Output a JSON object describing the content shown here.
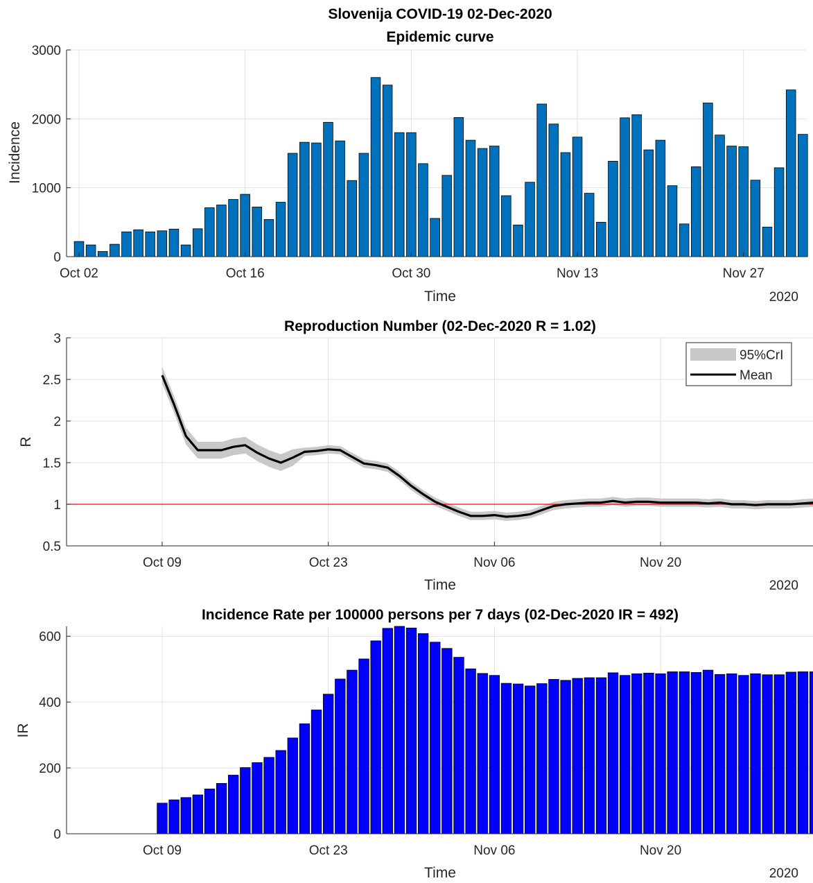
{
  "chart_data": [
    {
      "type": "bar",
      "title": [
        "Slovenija COVID-19 02-Dec-2020",
        "Epidemic curve"
      ],
      "xlabel": "Time",
      "ylabel": "Incidence",
      "year_label": "2020",
      "x_start": "2020-10-02",
      "x_ticks": [
        "Oct 02",
        "Oct 16",
        "Oct 30",
        "Nov 13",
        "Nov 27"
      ],
      "ylim": [
        0,
        3000
      ],
      "y_ticks": [
        "0",
        "1000",
        "2000",
        "3000"
      ],
      "bar_color": "#0072BD",
      "grid": true,
      "values": [
        220,
        170,
        75,
        180,
        360,
        390,
        360,
        375,
        400,
        170,
        405,
        710,
        750,
        830,
        905,
        720,
        540,
        790,
        1500,
        1660,
        1650,
        1950,
        1680,
        1105,
        1500,
        2600,
        2490,
        1800,
        1800,
        1350,
        555,
        1180,
        2020,
        1690,
        1570,
        1605,
        885,
        460,
        1080,
        2215,
        1925,
        1510,
        1735,
        920,
        500,
        1385,
        2015,
        2060,
        1550,
        1690,
        1030,
        475,
        1305,
        2230,
        1765,
        1605,
        1595,
        1110,
        430,
        1290,
        2420,
        1775
      ]
    },
    {
      "type": "line",
      "title": "Reproduction Number (02-Dec-2020 R = 1.02)",
      "xlabel": "Time",
      "ylabel": "R",
      "year_label": "2020",
      "x_ticks": [
        "Oct 09",
        "Oct 23",
        "Nov 06",
        "Nov 20"
      ],
      "ylim": [
        0.5,
        3
      ],
      "y_ticks": [
        "0.5",
        "1",
        "1.5",
        "2",
        "2.5",
        "3"
      ],
      "reference_line": 1,
      "reference_color": "#ff0000",
      "legend": [
        "95%CrI",
        "Mean"
      ],
      "legend_location": "top-right",
      "grid": true,
      "series": [
        {
          "name": "Mean",
          "x_start": "2020-10-09",
          "color": "#000000",
          "values": [
            2.55,
            2.2,
            1.82,
            1.65,
            1.65,
            1.65,
            1.69,
            1.71,
            1.62,
            1.55,
            1.5,
            1.56,
            1.63,
            1.64,
            1.66,
            1.65,
            1.57,
            1.49,
            1.47,
            1.44,
            1.34,
            1.22,
            1.12,
            1.03,
            0.97,
            0.91,
            0.86,
            0.86,
            0.87,
            0.85,
            0.86,
            0.88,
            0.93,
            0.98,
            1.0,
            1.01,
            1.02,
            1.02,
            1.04,
            1.02,
            1.03,
            1.03,
            1.02,
            1.02,
            1.02,
            1.02,
            1.01,
            1.02,
            1.0,
            1.0,
            0.99,
            1.0,
            1.0,
            1.0,
            1.01,
            1.02
          ]
        },
        {
          "name": "95%CrI",
          "color": "#c8c8c8",
          "band_halfwidth": 0.05
        }
      ]
    },
    {
      "type": "bar",
      "title": "Incidence Rate per 100000 persons per 7 days (02-Dec-2020 IR = 492)",
      "xlabel": "Time",
      "ylabel": "IR",
      "year_label": "2020",
      "x_ticks": [
        "Oct 09",
        "Oct 23",
        "Nov 06",
        "Nov 20"
      ],
      "ylim": [
        0,
        630
      ],
      "y_ticks": [
        "0",
        "200",
        "400",
        "600"
      ],
      "bar_color": "#0000ff",
      "grid": true,
      "x_start": "2020-10-09",
      "values": [
        93,
        103,
        110,
        118,
        136,
        153,
        178,
        201,
        216,
        232,
        253,
        291,
        334,
        376,
        424,
        470,
        497,
        531,
        586,
        624,
        630,
        625,
        608,
        582,
        563,
        536,
        501,
        487,
        481,
        457,
        455,
        449,
        456,
        469,
        466,
        472,
        474,
        474,
        489,
        481,
        486,
        488,
        486,
        492,
        492,
        490,
        497,
        484,
        486,
        481,
        486,
        483,
        483,
        491,
        492,
        492
      ]
    }
  ]
}
